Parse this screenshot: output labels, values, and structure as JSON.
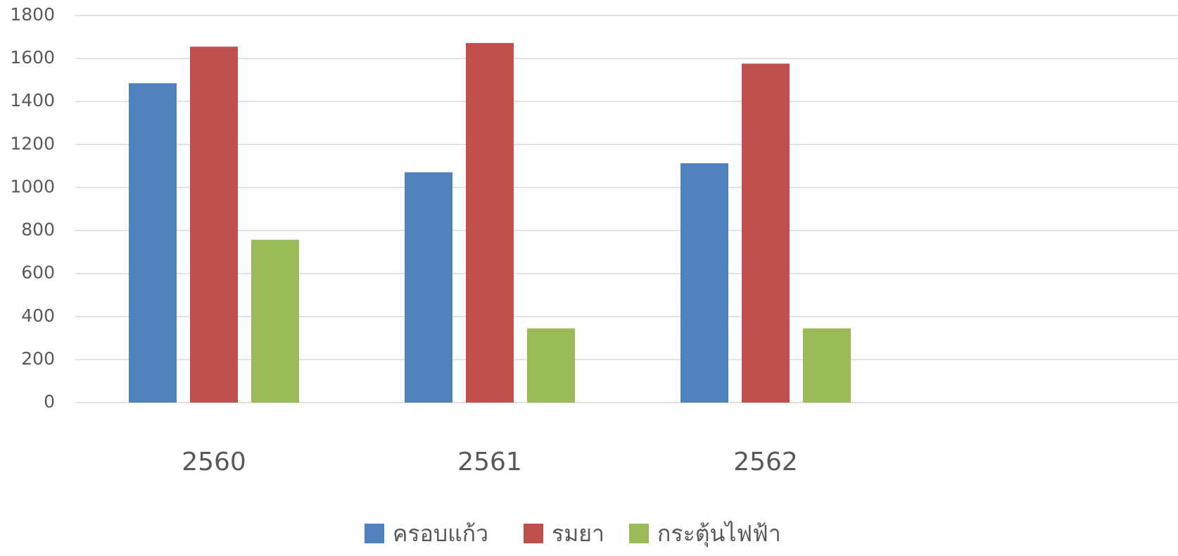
{
  "chart_data": {
    "type": "bar",
    "categories": [
      "2560",
      "2561",
      "2562",
      null
    ],
    "series": [
      {
        "name": "ครอบแก้ว",
        "color": "#4f81bd",
        "values": [
          1485,
          1071,
          1113,
          null
        ]
      },
      {
        "name": "รมยา",
        "color": "#c0504d",
        "values": [
          1655,
          1672,
          1576,
          null
        ]
      },
      {
        "name": "กระตุ้นไฟฟ้า",
        "color": "#9bbb59",
        "values": [
          757,
          345,
          345,
          null
        ]
      }
    ],
    "ylim": [
      0,
      1800
    ],
    "yticks": [
      0,
      200,
      400,
      600,
      800,
      1000,
      1200,
      1400,
      1600,
      1800
    ],
    "grid": true,
    "legend": "bottom"
  }
}
